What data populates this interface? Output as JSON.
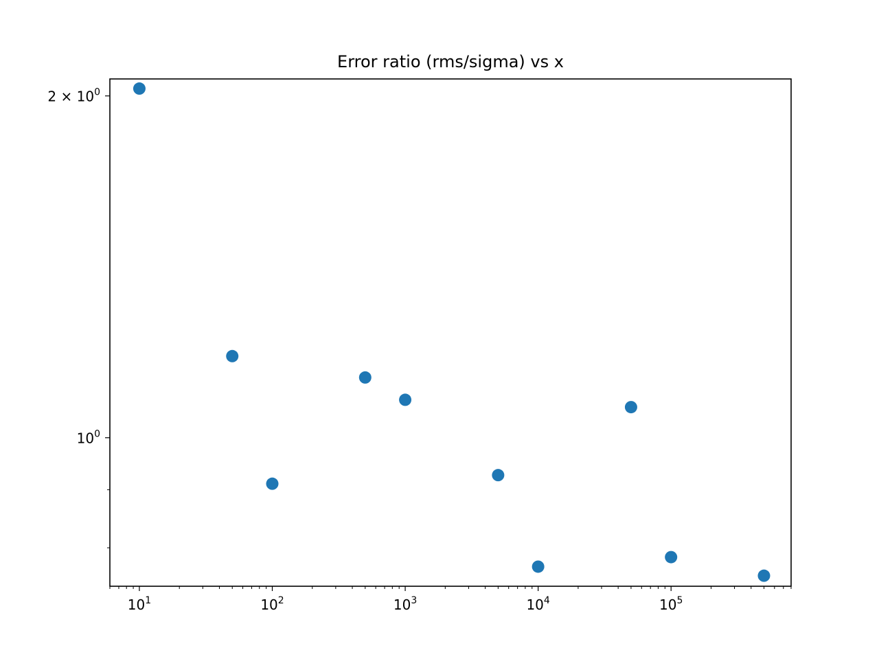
{
  "chart_data": {
    "type": "scatter",
    "title": "Error ratio (rms/sigma) vs x",
    "xlabel": "",
    "ylabel": "",
    "x_scale": "log",
    "y_scale": "log",
    "xlim": [
      6,
      800000
    ],
    "ylim": [
      0.74,
      2.07
    ],
    "grid": false,
    "marker_color": "#1f77b4",
    "series": [
      {
        "x": [
          10,
          50,
          100,
          500,
          1000,
          5000,
          10000,
          50000,
          100000,
          500000
        ],
        "y": [
          2.03,
          1.18,
          0.911,
          1.13,
          1.08,
          0.927,
          0.77,
          1.064,
          0.785,
          0.756
        ]
      }
    ],
    "x_ticks": [
      {
        "value": 10,
        "base": "10",
        "exp": "1"
      },
      {
        "value": 100,
        "base": "10",
        "exp": "2"
      },
      {
        "value": 1000,
        "base": "10",
        "exp": "3"
      },
      {
        "value": 10000,
        "base": "10",
        "exp": "4"
      },
      {
        "value": 100000,
        "base": "10",
        "exp": "5"
      }
    ],
    "y_ticks": [
      {
        "value": 2,
        "base": "2 × 10",
        "exp": "0"
      },
      {
        "value": 1,
        "base": "10",
        "exp": "0"
      }
    ]
  }
}
